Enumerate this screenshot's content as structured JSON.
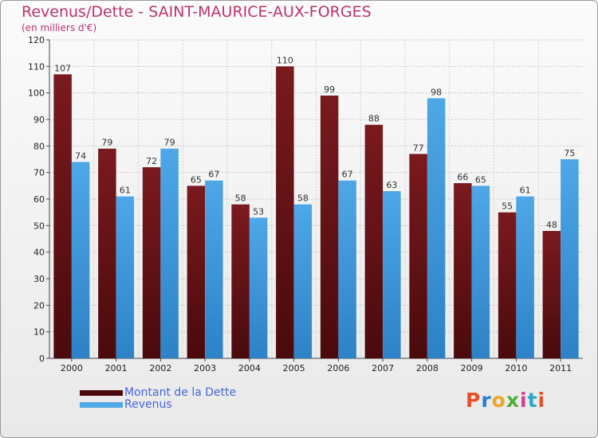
{
  "title": "Revenus/Dette - SAINT-MAURICE-AUX-FORGES",
  "subtitle": "(en milliers d'€)",
  "logo": {
    "text": "Proxiti",
    "colors": [
      "#e8502a",
      "#2a7fd4",
      "#f1a421",
      "#4caf3a",
      "#d63c8f",
      "#2aa7c9",
      "#e8502a"
    ]
  },
  "colors": {
    "series_debt": "#7a1a1e",
    "series_debt_dark": "#4a0a0c",
    "series_revenue": "#4ea7e6",
    "series_revenue_dark": "#2d82c7",
    "text_title": "#b8356a",
    "legend_text": "#4466dd"
  },
  "chart_data": {
    "type": "bar",
    "title": "Revenus/Dette - SAINT-MAURICE-AUX-FORGES",
    "subtitle": "(en milliers d'€)",
    "categories": [
      "2000",
      "2001",
      "2002",
      "2003",
      "2004",
      "2005",
      "2006",
      "2007",
      "2008",
      "2009",
      "2010",
      "2011"
    ],
    "series": [
      {
        "name": "Montant de la Dette",
        "values": [
          107,
          79,
          72,
          65,
          58,
          110,
          99,
          88,
          77,
          66,
          55,
          48
        ]
      },
      {
        "name": "Revenus",
        "values": [
          74,
          61,
          79,
          67,
          53,
          58,
          67,
          63,
          98,
          65,
          61,
          75
        ]
      }
    ],
    "ylim": [
      0,
      120
    ],
    "yticks": [
      0,
      10,
      20,
      30,
      40,
      50,
      60,
      70,
      80,
      90,
      100,
      110,
      120
    ],
    "grid": true,
    "legend_position": "bottom-left"
  }
}
